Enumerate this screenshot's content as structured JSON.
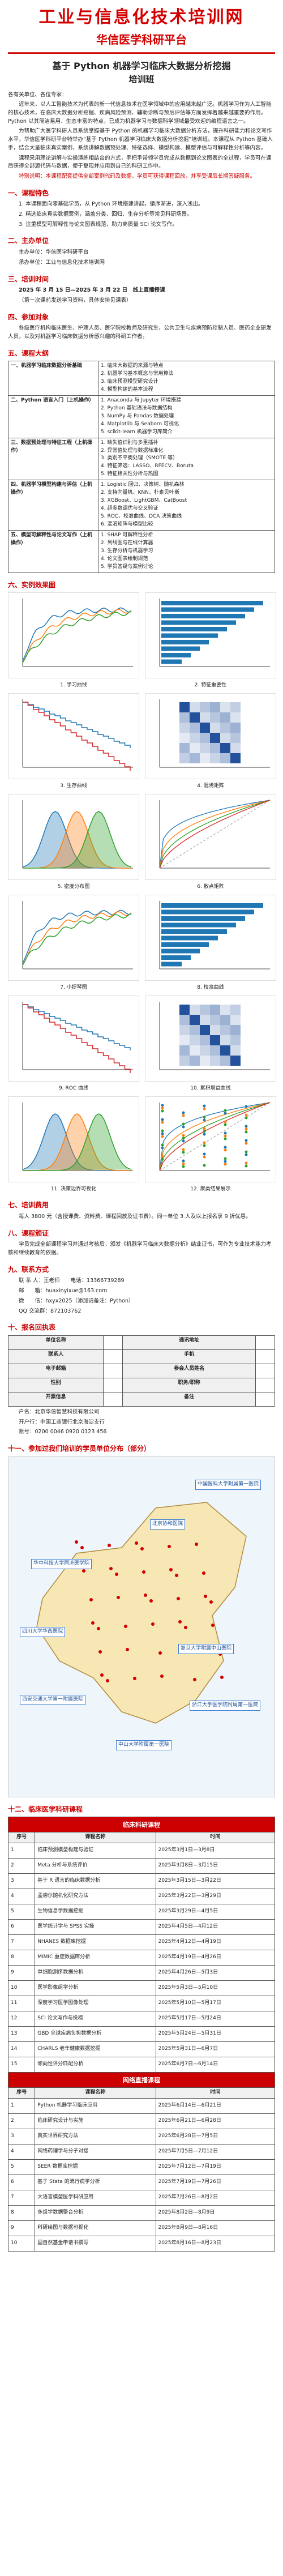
{
  "header": {
    "site": "工业与信息化技术培训网",
    "platform": "华信医学科研平台"
  },
  "title": {
    "main": "基于 Python 机器学习临床大数据分析挖掘",
    "sub": "培训班"
  },
  "intro": {
    "greeting": "各有关单位、各位专家：",
    "paragraphs": [
      "近年来，以人工智能技术为代表的新一代信息技术在医学领域中的应用越来越广泛。机器学习作为人工智能的核心技术，在临床大数据分析挖掘、疾病风险预测、辅助诊断与预后评估等方面发挥着越来越重要的作用。Python 以其简洁易用、生态丰富的特点，已成为机器学习与数据科学领域最受欢迎的编程语言之一。",
      "为帮助广大医学科研人员系统掌握基于 Python 的机器学习临床大数据分析方法，提升科研能力和论文写作水平，华信医学科研平台特举办“基于 Python 机器学习临床大数据分析挖掘”培训班。本课程从 Python 基础入手，结合大量临床真实案例，系统讲解数据预处理、特征选择、模型构建、模型评估与可解释性分析等内容。",
      "课程采用理论讲解与实操演练相结合的方式，手把手带领学员完成从数据到论文图表的全过程，学员可在课后获得全部源代码与数据，便于复现并应用到自己的科研工作中。"
    ],
    "note": "特别说明：本课程配套提供全部案例代码及数据，学员可获得课程回放，并享受课后长期答疑服务。"
  },
  "features": {
    "heading": "一、课程特色",
    "items": [
      "1. 本课程面向零基础学员，从 Python 环境搭建讲起，循序渐进，深入浅出。",
      "2. 精选临床真实数据案例，涵盖分类、回归、生存分析等常见科研场景。",
      "3. 注重模型可解释性与论文图表规范，助力高质量 SCI 论文写作。"
    ]
  },
  "organizer": {
    "heading": "二、主办单位",
    "lines": [
      "主办单位：华信医学科研平台",
      "承办单位：工业与信息化技术培训网"
    ]
  },
  "schedule": {
    "heading": "三、培训时间",
    "date": "2025 年 3 月 15 日—2025 年 3 月 22 日　线上直播授课",
    "note": "（第一次课前发送学习资料，具体安排见课表）"
  },
  "audience": {
    "heading": "四、参加对象",
    "text": "各级医疗机构临床医生、护理人员、医学院校教师及研究生、公共卫生与疾病预防控制人员、医药企业研发人员，以及对机器学习临床数据分析感兴趣的科研工作者。"
  },
  "outline": {
    "heading": "五、课程大纲",
    "rows": [
      {
        "module": "一、机器学习临床数据分析基础",
        "topics": [
          "1. 临床大数据的来源与特点",
          "2. 机器学习基本概念与常用算法",
          "3. 临床预测模型研究设计",
          "4. 模型构建的基本流程"
        ]
      },
      {
        "module": "二、Python 语言入门（上机操作）",
        "topics": [
          "1. Anaconda 与 Jupyter 环境搭建",
          "2. Python 基础语法与数据结构",
          "3. NumPy 与 Pandas 数据处理",
          "4. Matplotlib 与 Seaborn 可视化",
          "5. scikit-learn 机器学习库简介"
        ]
      },
      {
        "module": "三、数据预处理与特征工程（上机操作）",
        "topics": [
          "1. 缺失值识别与多重插补",
          "2. 异常值处理与数据标准化",
          "3. 类别不平衡处理（SMOTE 等）",
          "4. 特征筛选：LASSO、RFECV、Boruta",
          "5. 特征相关性分析与热图"
        ]
      },
      {
        "module": "四、机器学习模型构建与评估（上机操作）",
        "topics": [
          "1. Logistic 回归、决策树、随机森林",
          "2. 支持向量机、KNN、朴素贝叶斯",
          "3. XGBoost、LightGBM、CatBoost",
          "4. 超参数调优与交叉验证",
          "5. ROC、校准曲线、DCA 决策曲线",
          "6. 混淆矩阵与模型比较"
        ]
      },
      {
        "module": "五、模型可解释性与论文写作（上机操作）",
        "topics": [
          "1. SHAP 可解释性分析",
          "2. 列线图与在线计算器",
          "3. 生存分析与机器学习",
          "4. 论文图表绘制规范",
          "5. 学员答疑与案例讨论"
        ]
      }
    ]
  },
  "examples": {
    "heading": "六、实例效果图",
    "figures": [
      "1. 学习曲线",
      "2. 特征重要性",
      "3. 生存曲线",
      "4. 混淆矩阵",
      "5. 密度分布图",
      "6. 散点矩阵",
      "7. 小提琴图",
      "8. 校准曲线",
      "9. ROC 曲线",
      "10. 累积增益曲线",
      "11. 决策边界可视化",
      "12. 聚类结果展示"
    ]
  },
  "fee": {
    "heading": "七、培训费用",
    "text": "每人 3800 元（含授课费、资料费、课程回放及证书费）。同一单位 3 人及以上报名享 9 折优惠。"
  },
  "certificate": {
    "heading": "八、课程颁证",
    "text": "学员完成全部课程学习并通过考核后，颁发《机器学习临床大数据分析》结业证书，可作为专业技术能力考核和继续教育的依据。"
  },
  "contact": {
    "heading": "九、联系方式",
    "lines": [
      "联 系 人：王老师　　电话：13366739289",
      "邮　　箱：huaxinyixue@163.com",
      "微　　信：hxyx2025（添加请备注：Python）",
      "QQ 交流群：872103762"
    ]
  },
  "registration": {
    "heading": "十、报名回执表",
    "fields": [
      "单位名称",
      "通讯地址",
      "联系人",
      "手机",
      "电子邮箱",
      "参会人员姓名",
      "性别",
      "职务/职称",
      "开票信息",
      "备注"
    ],
    "payment": [
      "户名：北京华信智慧科技有限公司",
      "开户行：中国工商银行北京海淀支行",
      "账号：0200 0046 0920 0123 456"
    ]
  },
  "distribution": {
    "heading": "十一、参加过我们培训的学员单位分布（部分）",
    "labels": [
      "北京协和医院",
      "复旦大学附属中山医院",
      "四川大学华西医院",
      "中山大学附属第一医院",
      "浙江大学医学院附属第一医院",
      "华中科技大学同济医学院",
      "中国医科大学附属第一医院",
      "西安交通大学第一附属医院"
    ]
  },
  "courses": {
    "heading": "十二、临床医学科研课程",
    "columns": [
      "序号",
      "课程名称",
      "时间"
    ],
    "groups": [
      {
        "title": "临床科研课程",
        "rows": [
          [
            "1",
            "临床预测模型构建与验证",
            "2025年3月1日—3月8日"
          ],
          [
            "2",
            "Meta 分析与系统评价",
            "2025年3月8日—3月15日"
          ],
          [
            "3",
            "基于 R 语言的临床数据分析",
            "2025年3月15日—3月22日"
          ],
          [
            "4",
            "孟德尔随机化研究方法",
            "2025年3月22日—3月29日"
          ],
          [
            "5",
            "生物信息学数据挖掘",
            "2025年3月29日—4月5日"
          ],
          [
            "6",
            "医学统计学与 SPSS 实操",
            "2025年4月5日—4月12日"
          ],
          [
            "7",
            "NHANES 数据库挖掘",
            "2025年4月12日—4月19日"
          ],
          [
            "8",
            "MIMIC 重症数据库分析",
            "2025年4月19日—4月26日"
          ],
          [
            "9",
            "单细胞测序数据分析",
            "2025年4月26日—5月3日"
          ],
          [
            "10",
            "医学影像组学分析",
            "2025年5月3日—5月10日"
          ],
          [
            "11",
            "深度学习医学图像处理",
            "2025年5月10日—5月17日"
          ],
          [
            "12",
            "SCI 论文写作与投稿",
            "2025年5月17日—5月24日"
          ],
          [
            "13",
            "GBD 全球疾病负担数据分析",
            "2025年5月24日—5月31日"
          ],
          [
            "14",
            "CHARLS 老年健康数据挖掘",
            "2025年5月31日—6月7日"
          ],
          [
            "15",
            "倾向性评分匹配分析",
            "2025年6月7日—6月14日"
          ]
        ]
      },
      {
        "title": "网络直播课程",
        "rows": [
          [
            "1",
            "Python 机器学习临床应用",
            "2025年6月14日—6月21日"
          ],
          [
            "2",
            "临床研究设计与实施",
            "2025年6月21日—6月28日"
          ],
          [
            "3",
            "真实世界研究方法",
            "2025年6月28日—7月5日"
          ],
          [
            "4",
            "网络药理学与分子对接",
            "2025年7月5日—7月12日"
          ],
          [
            "5",
            "SEER 数据库挖掘",
            "2025年7月12日—7月19日"
          ],
          [
            "6",
            "基于 Stata 的流行病学分析",
            "2025年7月19日—7月26日"
          ],
          [
            "7",
            "大语言模型医学科研应用",
            "2025年7月26日—8月2日"
          ],
          [
            "8",
            "多组学数据整合分析",
            "2025年8月2日—8月9日"
          ],
          [
            "9",
            "科研绘图与数据可视化",
            "2025年8月9日—8月16日"
          ],
          [
            "10",
            "国自然基金申请书撰写",
            "2025年8月16日—8月23日"
          ]
        ]
      }
    ]
  }
}
